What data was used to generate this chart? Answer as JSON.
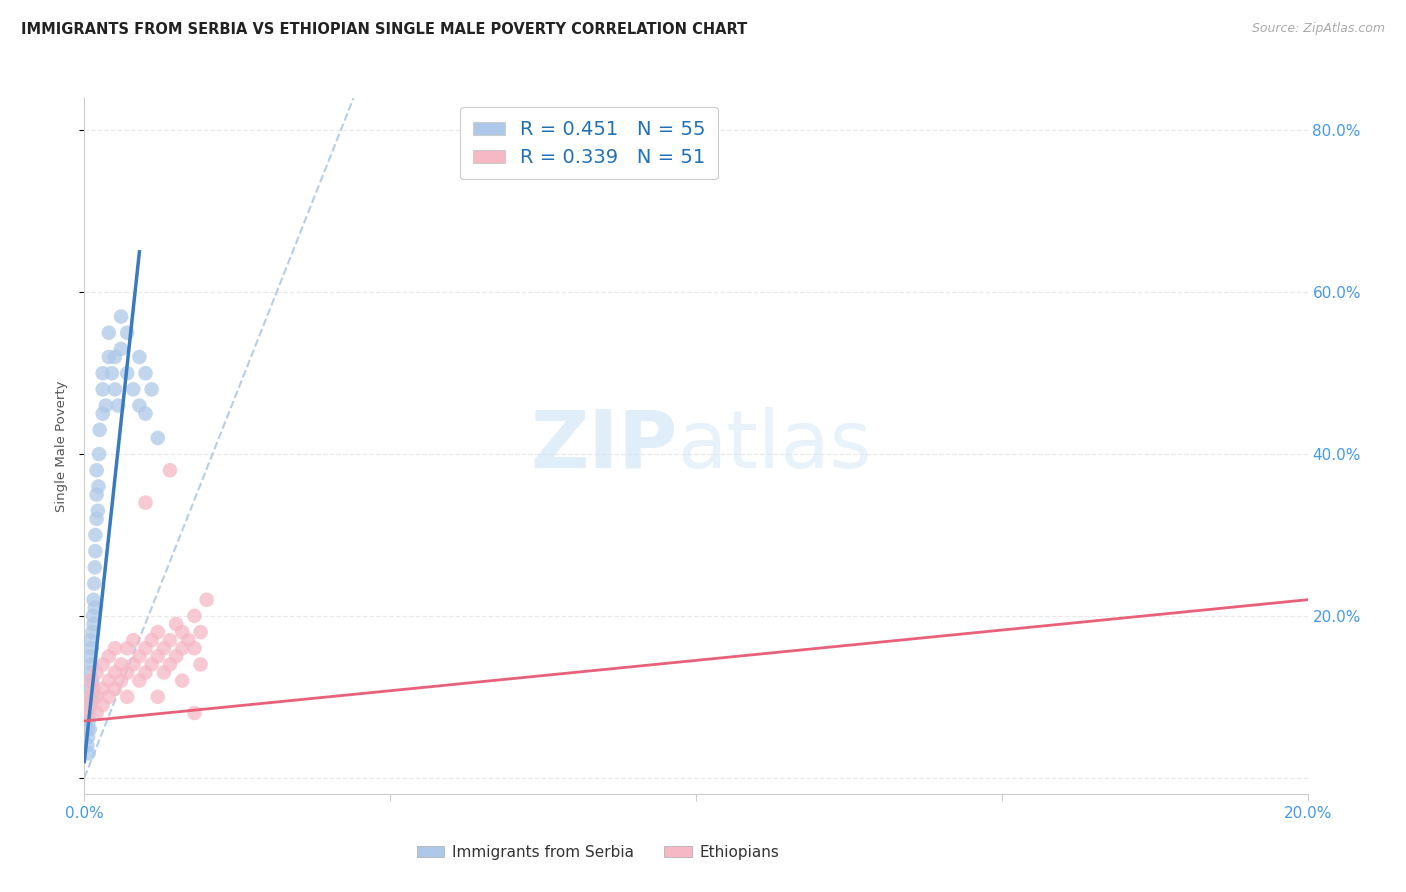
{
  "title": "IMMIGRANTS FROM SERBIA VS ETHIOPIAN SINGLE MALE POVERTY CORRELATION CHART",
  "source": "Source: ZipAtlas.com",
  "ylabel": "Single Male Poverty",
  "serbia_R": "0.451",
  "serbia_N": "55",
  "ethiopia_R": "0.339",
  "ethiopia_N": "51",
  "serbia_color": "#adc8e8",
  "serbia_line_color": "#3a7abf",
  "ethiopia_color": "#f5b8c4",
  "ethiopia_line_color": "#e8607a",
  "diag_color": "#b0c8e0",
  "grid_color": "#e0e0e0",
  "tick_color": "#4499ee",
  "xmax": 0.2,
  "ymin": -0.02,
  "ymax": 0.84,
  "serbia_x": [
    0.0005,
    0.0005,
    0.0006,
    0.0007,
    0.0007,
    0.0008,
    0.0008,
    0.0009,
    0.0009,
    0.001,
    0.001,
    0.001,
    0.001,
    0.001,
    0.0012,
    0.0012,
    0.0013,
    0.0013,
    0.0014,
    0.0014,
    0.0015,
    0.0015,
    0.0016,
    0.0017,
    0.0017,
    0.0018,
    0.0018,
    0.002,
    0.002,
    0.002,
    0.0022,
    0.0023,
    0.0024,
    0.0025,
    0.003,
    0.003,
    0.003,
    0.0035,
    0.004,
    0.004,
    0.0045,
    0.005,
    0.005,
    0.0055,
    0.006,
    0.006,
    0.007,
    0.007,
    0.008,
    0.009,
    0.009,
    0.01,
    0.01,
    0.011,
    0.012
  ],
  "serbia_y": [
    0.04,
    0.06,
    0.05,
    0.03,
    0.07,
    0.08,
    0.1,
    0.06,
    0.12,
    0.09,
    0.11,
    0.13,
    0.15,
    0.17,
    0.14,
    0.16,
    0.12,
    0.18,
    0.1,
    0.2,
    0.22,
    0.19,
    0.24,
    0.21,
    0.26,
    0.28,
    0.3,
    0.32,
    0.35,
    0.38,
    0.33,
    0.36,
    0.4,
    0.43,
    0.45,
    0.48,
    0.5,
    0.46,
    0.52,
    0.55,
    0.5,
    0.48,
    0.52,
    0.46,
    0.53,
    0.57,
    0.5,
    0.55,
    0.48,
    0.52,
    0.46,
    0.5,
    0.45,
    0.48,
    0.42
  ],
  "ethiopia_x": [
    0.0005,
    0.0008,
    0.001,
    0.001,
    0.0015,
    0.002,
    0.002,
    0.002,
    0.003,
    0.003,
    0.003,
    0.004,
    0.004,
    0.004,
    0.005,
    0.005,
    0.005,
    0.006,
    0.006,
    0.007,
    0.007,
    0.007,
    0.008,
    0.008,
    0.009,
    0.009,
    0.01,
    0.01,
    0.011,
    0.011,
    0.012,
    0.012,
    0.013,
    0.013,
    0.014,
    0.014,
    0.015,
    0.015,
    0.016,
    0.016,
    0.017,
    0.018,
    0.018,
    0.019,
    0.019,
    0.02,
    0.01,
    0.012,
    0.014,
    0.016,
    0.018
  ],
  "ethiopia_y": [
    0.08,
    0.1,
    0.09,
    0.12,
    0.11,
    0.08,
    0.1,
    0.13,
    0.09,
    0.11,
    0.14,
    0.1,
    0.12,
    0.15,
    0.11,
    0.13,
    0.16,
    0.12,
    0.14,
    0.1,
    0.13,
    0.16,
    0.14,
    0.17,
    0.12,
    0.15,
    0.13,
    0.16,
    0.14,
    0.17,
    0.15,
    0.18,
    0.13,
    0.16,
    0.14,
    0.17,
    0.15,
    0.19,
    0.16,
    0.18,
    0.17,
    0.16,
    0.2,
    0.14,
    0.18,
    0.22,
    0.34,
    0.1,
    0.38,
    0.12,
    0.08
  ]
}
